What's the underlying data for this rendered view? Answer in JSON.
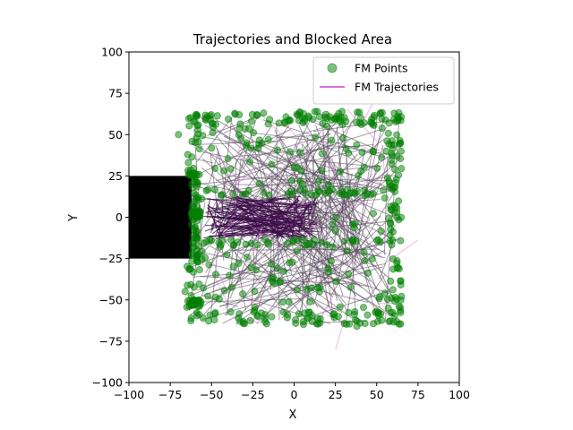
{
  "chart_data": {
    "type": "scatter",
    "title": "Trajectories and Blocked Area",
    "xlabel": "X",
    "ylabel": "Y",
    "xlim": [
      -100,
      100
    ],
    "ylim": [
      -100,
      100
    ],
    "xticks": [
      -100,
      -75,
      -50,
      -25,
      0,
      25,
      50,
      75,
      100
    ],
    "yticks": [
      -100,
      -75,
      -50,
      -25,
      0,
      25,
      50,
      75,
      100
    ],
    "xtick_labels": [
      "−100",
      "−75",
      "−50",
      "−25",
      "0",
      "25",
      "50",
      "75",
      "100"
    ],
    "ytick_labels": [
      "−100",
      "−75",
      "−50",
      "−25",
      "0",
      "25",
      "50",
      "75",
      "100"
    ],
    "grid": false,
    "legend_position": "top-right",
    "blocked_area": {
      "x": [
        -100,
        -62
      ],
      "y": [
        -25,
        25
      ],
      "color": "#000000"
    },
    "points_region": {
      "x": [
        -65,
        65
      ],
      "y": [
        -65,
        64
      ]
    },
    "gap_region": {
      "x": [
        -55,
        15
      ],
      "y": [
        -13,
        13
      ]
    },
    "series": [
      {
        "name": "FM Points",
        "kind": "scatter",
        "color": "#008000",
        "alpha": 0.5
      },
      {
        "name": "FM Trajectories",
        "kind": "line",
        "color": "#da70d6"
      }
    ]
  }
}
